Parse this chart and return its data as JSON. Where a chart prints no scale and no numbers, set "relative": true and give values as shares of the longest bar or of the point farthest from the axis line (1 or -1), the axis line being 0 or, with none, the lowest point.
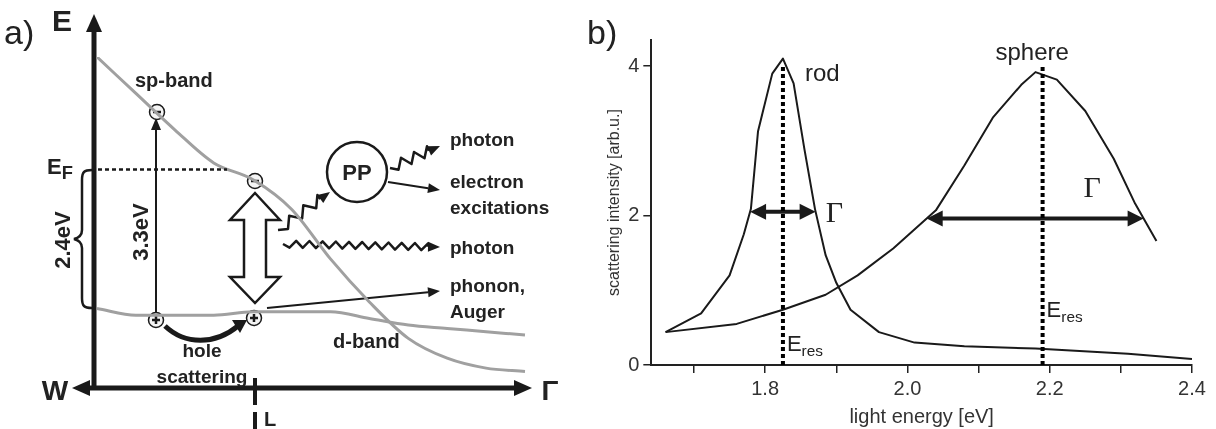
{
  "chart_data": [
    {
      "type": "line",
      "title": "a)",
      "relative": true,
      "legend": false,
      "categories": [
        null,
        null,
        null,
        null,
        null,
        null,
        null,
        null,
        null,
        null,
        null,
        null
      ],
      "series": [
        {
          "name": "sp-band",
          "color": "#a0a0a0",
          "values": [
            1,
            0.89,
            0.78,
            0.68,
            0.63,
            0.54,
            0.39,
            0.26,
            0.15,
            0.09,
            0.06,
            0.05
          ]
        },
        {
          "name": "d-band",
          "color": "#a0a0a0",
          "values": [
            0.24,
            0.22,
            0.22,
            0.22,
            0.23,
            0.23,
            0.23,
            0.21,
            0.19,
            0.18,
            0.17,
            0.16
          ]
        }
      ],
      "ref_lines": [
        {
          "axis": "y",
          "value": 0.66,
          "label": "E$_{F}$",
          "color": "#1a1a1a",
          "line_style": "dotted"
        }
      ],
      "annotations": [
        "E",
        "W",
        "Γ",
        "L",
        "2.4eV",
        "3.3eV",
        "PP",
        "photon",
        "electron excitations",
        "photon",
        "phonon, Auger",
        "hole scattering"
      ]
    },
    {
      "type": "line",
      "title": "b)",
      "xlabel": "light energy [eV]",
      "ylabel": "scattering intensity [arb.u.]",
      "xlim": [
        1.64,
        2.4
      ],
      "ylim": [
        0,
        4.35
      ],
      "xticks": [
        {
          "value": 1.7,
          "label": null
        },
        1.8,
        {
          "value": 1.9,
          "label": null
        },
        {
          "value": 2,
          "label": "2.0"
        },
        {
          "value": 2.1,
          "label": null
        },
        2.2,
        {
          "value": 2.3,
          "label": null
        },
        2.4
      ],
      "yticks": [
        0,
        2,
        4
      ],
      "grid": false,
      "legend": false,
      "series": [
        {
          "name": "rod",
          "color": "#1a1a1a",
          "x": [
            1.66,
            1.71,
            1.75,
            1.77,
            1.78,
            1.79,
            1.81,
            1.825,
            1.84,
            1.855,
            1.87,
            1.885,
            1.9,
            1.92,
            1.96,
            2.01,
            2.08,
            2.18,
            2.31,
            2.4
          ],
          "values": [
            0.44,
            0.69,
            1.2,
            1.75,
            2.09,
            3.13,
            3.9,
            4.1,
            3.77,
            2.9,
            2.09,
            1.47,
            1.1,
            0.74,
            0.44,
            0.3,
            0.25,
            0.22,
            0.15,
            0.08
          ]
        },
        {
          "name": "sphere",
          "color": "#1a1a1a",
          "x": [
            1.66,
            1.76,
            1.825,
            1.885,
            1.93,
            1.98,
            2.04,
            2.08,
            2.12,
            2.16,
            2.18,
            2.21,
            2.25,
            2.29,
            2.32,
            2.35
          ],
          "values": [
            0.44,
            0.55,
            0.74,
            0.94,
            1.2,
            1.56,
            2.07,
            2.67,
            3.31,
            3.75,
            3.92,
            3.82,
            3.4,
            2.76,
            2.16,
            1.66
          ]
        }
      ],
      "ref_lines": [
        {
          "axis": "x",
          "value": 1.825,
          "label": "E$_{res}$",
          "color": "#000000",
          "line_style": "dotted"
        },
        {
          "axis": "x",
          "value": 2.19,
          "label": "E$_{res}$",
          "color": "#000000",
          "line_style": "dotted"
        }
      ],
      "annotations": [
        "Γ",
        "Γ"
      ]
    }
  ]
}
